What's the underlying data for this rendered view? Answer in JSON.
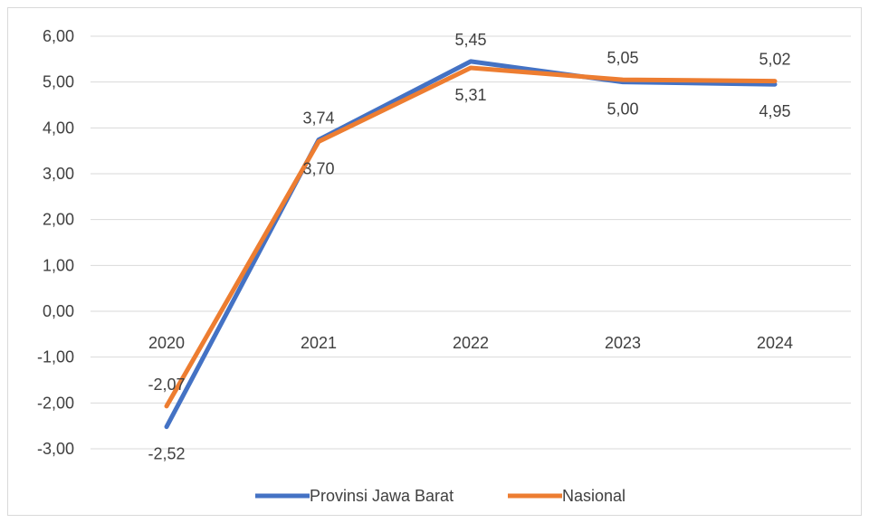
{
  "chart_data": {
    "type": "line",
    "categories": [
      "2020",
      "2021",
      "2022",
      "2023",
      "2024"
    ],
    "series": [
      {
        "name": "Provinsi Jawa Barat",
        "values": [
          -2.52,
          3.74,
          5.45,
          5.0,
          4.95
        ],
        "labels": [
          "-2,52",
          "3,74",
          "5,45",
          "5,00",
          "4,95"
        ],
        "color": "#4472C4"
      },
      {
        "name": "Nasional",
        "values": [
          -2.07,
          3.7,
          5.31,
          5.05,
          5.02
        ],
        "labels": [
          "-2,07",
          "3,70",
          "5,31",
          "5,05",
          "5,02"
        ],
        "color": "#ED7D31"
      }
    ],
    "y_ticks": [
      "-3,00",
      "-2,00",
      "-1,00",
      "0,00",
      "1,00",
      "2,00",
      "3,00",
      "4,00",
      "5,00",
      "6,00"
    ],
    "ylim": [
      -3,
      6
    ],
    "grid": true,
    "legend_position": "bottom",
    "gridline_color": "#d9d9d9"
  }
}
